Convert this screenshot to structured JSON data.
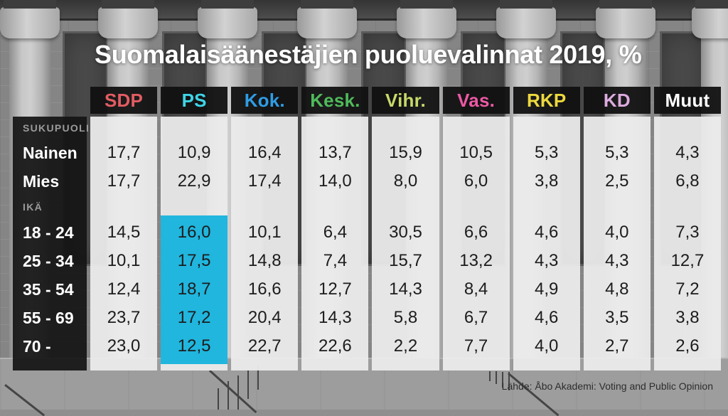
{
  "title": "Suomalaisäänestäjien puoluevalinnat 2019, %",
  "source": "Lähde: Åbo Akademi: Voting and Public Opinion",
  "parties": [
    {
      "label": "SDP",
      "color": "#e25c62"
    },
    {
      "label": "PS",
      "color": "#3fd4e6"
    },
    {
      "label": "Kok.",
      "color": "#2f9ce4"
    },
    {
      "label": "Kesk.",
      "color": "#4fba5b"
    },
    {
      "label": "Vihr.",
      "color": "#c5da69"
    },
    {
      "label": "Vas.",
      "color": "#ee58a5"
    },
    {
      "label": "RKP",
      "color": "#edd93e"
    },
    {
      "label": "KD",
      "color": "#dcabdf"
    },
    {
      "label": "Muut",
      "color": "#ffffff"
    }
  ],
  "groups": [
    {
      "label": "SUKUPUOLI",
      "rows": [
        {
          "label": "Nainen",
          "values": [
            "17,7",
            "10,9",
            "16,4",
            "13,7",
            "15,9",
            "10,5",
            "5,3",
            "5,3",
            "4,3"
          ]
        },
        {
          "label": "Mies",
          "values": [
            "17,7",
            "22,9",
            "17,4",
            "14,0",
            "8,0",
            "6,0",
            "3,8",
            "2,5",
            "6,8"
          ]
        }
      ]
    },
    {
      "label": "IKÄ",
      "rows": [
        {
          "label": "18 - 24",
          "values": [
            "14,5",
            "16,0",
            "10,1",
            "6,4",
            "30,5",
            "6,6",
            "4,6",
            "4,0",
            "7,3"
          ]
        },
        {
          "label": "25 - 34",
          "values": [
            "10,1",
            "17,5",
            "14,8",
            "7,4",
            "15,7",
            "13,2",
            "4,3",
            "4,3",
            "12,7"
          ]
        },
        {
          "label": "35 - 54",
          "values": [
            "12,4",
            "18,7",
            "16,6",
            "12,7",
            "14,3",
            "8,4",
            "4,9",
            "4,8",
            "7,2"
          ]
        },
        {
          "label": "55 - 69",
          "values": [
            "23,7",
            "17,2",
            "20,4",
            "14,3",
            "5,8",
            "6,7",
            "4,6",
            "3,5",
            "3,8"
          ]
        },
        {
          "label": "70 -",
          "values": [
            "23,0",
            "12,5",
            "22,7",
            "22,6",
            "2,2",
            "7,7",
            "4,0",
            "2,7",
            "2,6"
          ]
        }
      ]
    }
  ],
  "highlight": {
    "party": "PS",
    "group": "IKÄ",
    "color": "#20b6de"
  },
  "chart_data": {
    "type": "table",
    "title": "Suomalaisäänestäjien puoluevalinnat 2019, %",
    "columns": [
      "SDP",
      "PS",
      "Kok.",
      "Kesk.",
      "Vihr.",
      "Vas.",
      "RKP",
      "KD",
      "Muut"
    ],
    "row_groups": [
      {
        "group": "SUKUPUOLI",
        "rows": [
          {
            "label": "Nainen",
            "values": [
              17.7,
              10.9,
              16.4,
              13.7,
              15.9,
              10.5,
              5.3,
              5.3,
              4.3
            ]
          },
          {
            "label": "Mies",
            "values": [
              17.7,
              22.9,
              17.4,
              14.0,
              8.0,
              6.0,
              3.8,
              2.5,
              6.8
            ]
          }
        ]
      },
      {
        "group": "IKÄ",
        "rows": [
          {
            "label": "18 - 24",
            "values": [
              14.5,
              16.0,
              10.1,
              6.4,
              30.5,
              6.6,
              4.6,
              4.0,
              7.3
            ]
          },
          {
            "label": "25 - 34",
            "values": [
              10.1,
              17.5,
              14.8,
              7.4,
              15.7,
              13.2,
              4.3,
              4.3,
              12.7
            ]
          },
          {
            "label": "35 - 54",
            "values": [
              12.4,
              18.7,
              16.6,
              12.7,
              14.3,
              8.4,
              4.9,
              4.8,
              7.2
            ]
          },
          {
            "label": "55 - 69",
            "values": [
              23.7,
              17.2,
              20.4,
              14.3,
              5.8,
              6.7,
              4.6,
              3.5,
              3.8
            ]
          },
          {
            "label": "70 -",
            "values": [
              23.0,
              12.5,
              22.7,
              22.6,
              2.2,
              7.7,
              4.0,
              2.7,
              2.6
            ]
          }
        ]
      }
    ],
    "units": "%",
    "highlighted_column": "PS",
    "highlighted_rows_group": "IKÄ",
    "source": "Lähde: Åbo Akademi: Voting and Public Opinion"
  }
}
